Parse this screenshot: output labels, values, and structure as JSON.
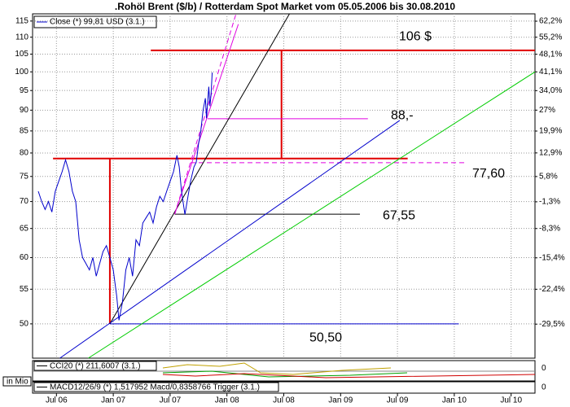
{
  "chart_data": {
    "type": "line",
    "title": ".Rohöl Brent ($/b) / Rotterdam Spot Market vom 05.05.2006 bis 30.08.2010",
    "log": true,
    "grid": true,
    "x": [
      2006.34,
      2006.37,
      2006.4,
      2006.43,
      2006.46,
      2006.49,
      2006.52,
      2006.55,
      2006.58,
      2006.61,
      2006.64,
      2006.67,
      2006.7,
      2006.73,
      2006.76,
      2006.79,
      2006.82,
      2006.85,
      2006.88,
      2006.91,
      2006.94,
      2006.97,
      2007.0,
      2007.03,
      2007.05,
      2007.08,
      2007.11,
      2007.14,
      2007.17,
      2007.2,
      2007.23,
      2007.26,
      2007.29,
      2007.32,
      2007.35,
      2007.38,
      2007.41,
      2007.44,
      2007.47,
      2007.5,
      2007.53,
      2007.56,
      2007.58,
      2007.6,
      2007.63,
      2007.65,
      2007.68,
      2007.71,
      2007.73,
      2007.75,
      2007.77,
      2007.79,
      2007.81,
      2007.82,
      2007.84,
      2007.85,
      2007.86,
      2007.87
    ],
    "series": [
      {
        "name": "Close (*) 99,81 USD (3.1.)",
        "color": "#0000cc",
        "values": [
          72,
          70,
          68.5,
          70,
          68,
          72,
          74,
          76,
          78.5,
          76,
          72,
          70,
          63,
          60,
          59,
          58,
          60,
          57,
          59,
          61,
          62,
          60,
          58,
          54,
          50.5,
          53,
          58,
          60,
          57,
          63,
          62,
          66,
          67,
          68,
          66,
          69,
          71,
          70,
          72,
          74,
          76,
          79.5,
          77,
          72,
          67.55,
          70,
          74,
          77,
          78,
          82,
          85,
          90,
          93,
          88,
          96,
          91,
          94,
          99.81
        ]
      }
    ],
    "xlim": [
      2006.29,
      2010.71
    ],
    "xticks": [
      {
        "value": 2006.5,
        "label": "Jul 06"
      },
      {
        "value": 2007.0,
        "label": "Jan 07"
      },
      {
        "value": 2007.5,
        "label": "Jul 07"
      },
      {
        "value": 2008.0,
        "label": "Jan 08"
      },
      {
        "value": 2008.5,
        "label": "Jul 08"
      },
      {
        "value": 2009.0,
        "label": "Jan 09"
      },
      {
        "value": 2009.5,
        "label": "Jul 09"
      },
      {
        "value": 2010.0,
        "label": "Jan 10"
      },
      {
        "value": 2010.5,
        "label": "Jul 10"
      }
    ],
    "ylim": [
      45.5,
      117.3
    ],
    "yticks": [
      50,
      55,
      60,
      65,
      70,
      75,
      80,
      85,
      90,
      95,
      100,
      105,
      110,
      115
    ],
    "y2lim": [
      -35.8,
      65.4
    ],
    "y2ticks": [
      {
        "value": 62.2,
        "label": "62,2%"
      },
      {
        "value": 55.2,
        "label": "55,2%"
      },
      {
        "value": 48.1,
        "label": "48,1%"
      },
      {
        "value": 41.1,
        "label": "41,1%"
      },
      {
        "value": 34.0,
        "label": "34,0%"
      },
      {
        "value": 27,
        "label": "27%"
      },
      {
        "value": 19.9,
        "label": "19,9%"
      },
      {
        "value": 12.9,
        "label": "12,9%"
      },
      {
        "value": 5.8,
        "label": "5,8%"
      },
      {
        "value": -1.3,
        "label": "-1,3%"
      },
      {
        "value": -8.3,
        "label": "-8,3%"
      },
      {
        "value": -15.4,
        "label": "-15,4%"
      },
      {
        "value": -22.4,
        "label": "-22,4%"
      },
      {
        "value": -29.5,
        "label": "-29,5%"
      }
    ],
    "annotations": [
      {
        "text": "106 $",
        "value": 106,
        "color": "#e00000"
      },
      {
        "text": "88,-",
        "value": 88,
        "color": "#e000e0"
      },
      {
        "text": "77,60",
        "value": 77.6,
        "color": "#e000e0"
      },
      {
        "text": "67,55",
        "value": 67.55,
        "color": "#000000"
      },
      {
        "text": "50,50",
        "value": 50.5,
        "color": "#0000cc"
      }
    ],
    "lines": [
      {
        "x": [
          2007.33,
          2010.71
        ],
        "y": [
          106.1,
          106.1
        ],
        "color": "#e00000",
        "width": 2
      },
      {
        "x": [
          2008.48,
          2008.48
        ],
        "y": [
          106.1,
          78.8
        ],
        "color": "#e00000",
        "width": 2
      },
      {
        "x": [
          2006.47,
          2009.59
        ],
        "y": [
          78.8,
          78.8
        ],
        "color": "#e00000",
        "width": 2
      },
      {
        "x": [
          2006.97,
          2006.97
        ],
        "y": [
          78.8,
          50
        ],
        "color": "#e00000",
        "width": 2
      },
      {
        "x": [
          2007.83,
          2009.24
        ],
        "y": [
          87.9,
          87.9
        ],
        "color": "#e000e0",
        "width": 1
      },
      {
        "x": [
          2007.68,
          2010.11
        ],
        "y": [
          77.9,
          77.9
        ],
        "color": "#e000e0",
        "width": 1,
        "dash": true
      },
      {
        "x": [
          2007.54,
          2009.17
        ],
        "y": [
          67.6,
          67.6
        ],
        "color": "#000000",
        "width": 1
      },
      {
        "x": [
          2006.97,
          2010.04
        ],
        "y": [
          50,
          50
        ],
        "color": "#0000cc",
        "width": 1
      },
      {
        "x": [
          2006.97,
          2008.55
        ],
        "y": [
          50,
          117.3
        ],
        "color": "#000000",
        "width": 1
      },
      {
        "x": [
          2006.53,
          2009.52
        ],
        "y": [
          45.5,
          87.5
        ],
        "color": "#0000cc",
        "width": 1
      },
      {
        "x": [
          2006.78,
          2010.71
        ],
        "y": [
          45.5,
          100
        ],
        "color": "#00cc00",
        "width": 1
      },
      {
        "x": [
          2007.54,
          2008.1
        ],
        "y": [
          67.6,
          114
        ],
        "color": "#e000e0",
        "width": 1
      },
      {
        "x": [
          2007.54,
          2008.08
        ],
        "y": [
          67.6,
          117.3
        ],
        "color": "#e000e0",
        "width": 1,
        "dash": true
      }
    ],
    "panels": [
      {
        "legend": "CCI20 (*) 211,6007 (3.1.)",
        "yticks": [
          0
        ]
      },
      {
        "legend": "MACD12/26/9 (*) 1,517952 Macd/0,8358766 Trigger (3.1.)",
        "yticks": [
          0
        ]
      }
    ],
    "volume_unit": "in Mio"
  }
}
